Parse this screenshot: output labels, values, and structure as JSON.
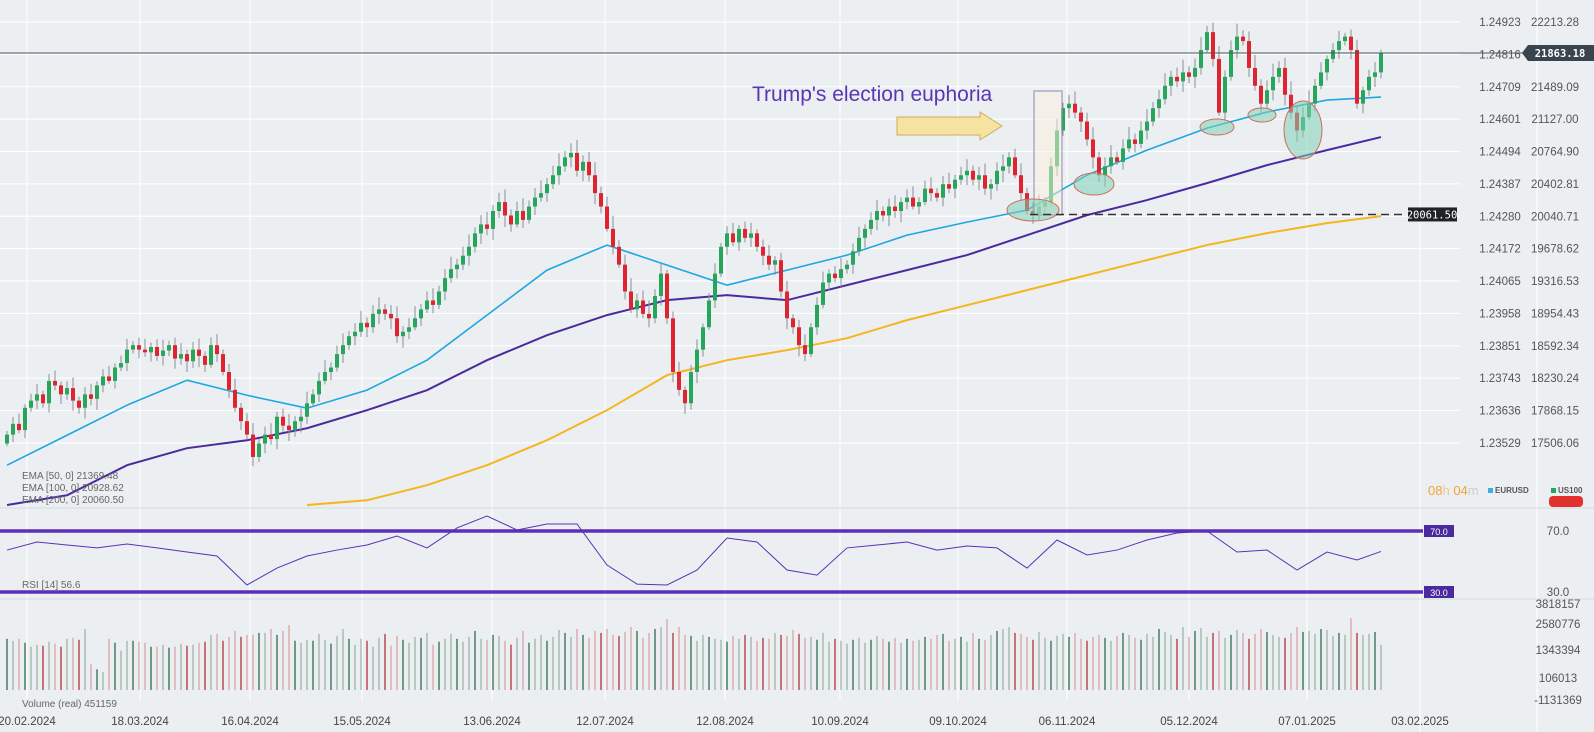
{
  "chart_data": {
    "type": "candlestick",
    "symbol_primary": "US100",
    "symbol_secondary": "EURUSD",
    "annotation_text": "Trump's election euphoria",
    "current_price_label": "21863.18",
    "support_level_label": "20061.50",
    "support_level": 20061.5,
    "countdown": {
      "hours": "08",
      "h": "h",
      "minutes": "04",
      "m": "m"
    },
    "price_axis_right": [
      "22213.28",
      "21863.18",
      "21489.09",
      "21127.00",
      "20764.90",
      "20402.81",
      "20040.71",
      "19678.62",
      "19316.53",
      "18954.43",
      "18592.34",
      "18230.24",
      "17868.15",
      "17506.06"
    ],
    "price_axis_eurusd": [
      "1.24923",
      "1.24816",
      "1.24709",
      "1.24601",
      "1.24494",
      "1.24387",
      "1.24280",
      "1.24172",
      "1.24065",
      "1.23958",
      "1.23851",
      "1.23743",
      "1.23636",
      "1.23529"
    ],
    "ylim": [
      17506.06,
      22213.28
    ],
    "x_tick_labels": [
      "20.02.2024",
      "18.03.2024",
      "16.04.2024",
      "15.05.2024",
      "13.06.2024",
      "12.07.2024",
      "12.08.2024",
      "10.09.2024",
      "09.10.2024",
      "06.11.2024",
      "05.12.2024",
      "07.01.2025",
      "03.02.2025"
    ],
    "closes": [
      17600,
      17720,
      17650,
      17900,
      17980,
      18050,
      17950,
      18200,
      18150,
      18050,
      18120,
      17980,
      17900,
      18050,
      18000,
      18150,
      18250,
      18200,
      18350,
      18400,
      18550,
      18600,
      18550,
      18520,
      18580,
      18480,
      18540,
      18600,
      18450,
      18500,
      18420,
      18550,
      18480,
      18380,
      18600,
      18500,
      18300,
      18100,
      17900,
      17750,
      17600,
      17350,
      17500,
      17600,
      17550,
      17800,
      17700,
      17650,
      17750,
      17800,
      17950,
      18050,
      18200,
      18300,
      18350,
      18500,
      18600,
      18700,
      18750,
      18850,
      18800,
      18950,
      19000,
      18950,
      18900,
      18700,
      18750,
      18800,
      18900,
      19000,
      19100,
      19050,
      19200,
      19350,
      19450,
      19500,
      19600,
      19700,
      19850,
      19950,
      19900,
      20100,
      20200,
      20050,
      19950,
      20100,
      20000,
      20150,
      20250,
      20300,
      20400,
      20500,
      20600,
      20700,
      20750,
      20550,
      20650,
      20500,
      20300,
      20150,
      19900,
      19700,
      19500,
      19200,
      19000,
      19100,
      18950,
      18900,
      19150,
      19400,
      18900,
      18300,
      18100,
      17950,
      18300,
      18550,
      18800,
      19100,
      19400,
      19700,
      19850,
      19750,
      19900,
      19800,
      19850,
      19700,
      19600,
      19500,
      19550,
      19200,
      18900,
      18800,
      18600,
      18500,
      18800,
      19050,
      19300,
      19400,
      19350,
      19450,
      19500,
      19650,
      19800,
      19900,
      20000,
      20100,
      20050,
      20150,
      20100,
      20200,
      20250,
      20150,
      20200,
      20350,
      20300,
      20250,
      20400,
      20350,
      20450,
      20500,
      20550,
      20450,
      20500,
      20350,
      20400,
      20550,
      20600,
      20700,
      20500,
      20300,
      20100,
      20050,
      20150,
      20200,
      20600,
      21000,
      21250,
      21300,
      21200,
      21100,
      20900,
      20700,
      20500,
      20600,
      20700,
      20650,
      20800,
      20900,
      20850,
      21000,
      21100,
      21250,
      21350,
      21500,
      21600,
      21550,
      21650,
      21600,
      21700,
      21900,
      22100,
      21800,
      21200,
      21600,
      21900,
      22050,
      22000,
      21700,
      21500,
      21300,
      21450,
      21600,
      21700,
      21400,
      21200,
      21000,
      21150,
      21300,
      21500,
      21650,
      21800,
      21900,
      22000,
      22050,
      21900,
      21300,
      21450,
      21600,
      21650,
      21863
    ],
    "ema": [
      {
        "name": "EMA [50, 0]",
        "value": "21369.48",
        "color": "#1ea7e1",
        "sample_every": 10,
        "values": [
          17258,
          17593,
          17929,
          18208,
          18040,
          17895,
          18097,
          18432,
          18936,
          19439,
          19719,
          19495,
          19271,
          19439,
          19607,
          19830,
          19976,
          20110,
          20502,
          20781,
          21027,
          21206,
          21340,
          21374
        ]
      },
      {
        "name": "EMA [100, 0]",
        "value": "20928.62",
        "color": "#4b2a9e",
        "sample_every": 10,
        "values": [
          16642,
          16922,
          17258,
          17448,
          17537,
          17671,
          17873,
          18097,
          18432,
          18712,
          18936,
          19103,
          19159,
          19103,
          19271,
          19439,
          19607,
          19830,
          20054,
          20222,
          20412,
          20613,
          20781,
          20927
        ]
      },
      {
        "name": "EMA [200, 0]",
        "value": "20060.50",
        "color": "#f5b51e",
        "sample_every": 10,
        "values": [
          null,
          null,
          null,
          null,
          null,
          16698,
          16866,
          17034,
          17258,
          17537,
          17873,
          18264,
          18432,
          18544,
          18678,
          18880,
          19047,
          19215,
          19383,
          19551,
          19719,
          19853,
          19965,
          20043
        ]
      }
    ],
    "rsi": {
      "name": "RSI [14]",
      "value": "56.6",
      "upper": "70.0",
      "lower": "30.0",
      "line_color": "#5b2fb8",
      "sample_every": 5,
      "values": [
        57.5,
        62.8,
        60.8,
        58.9,
        61.5,
        58.9,
        56.2,
        53.6,
        34.6,
        45.7,
        53.6,
        57.5,
        60.8,
        66.7,
        58.9,
        72,
        79.8,
        70.7,
        74.6,
        74.6,
        47.7,
        35.2,
        34.6,
        44.4,
        65.4,
        62.8,
        44.4,
        41.1,
        58.9,
        60.8,
        62.8,
        57.5,
        60.2,
        58.9,
        45.7,
        64.1,
        54.3,
        57.5,
        64.1,
        68.7,
        70,
        56.2,
        57.5,
        44.4,
        56.2,
        51,
        56.6
      ]
    },
    "volume": {
      "name": "Volume  (real)",
      "value": "451159",
      "axis": [
        "3818157",
        "2580776",
        "1343394",
        "106013",
        "-1131369"
      ],
      "values": [
        2100,
        2000,
        2100,
        1900,
        1700,
        1800,
        1750,
        1950,
        1850,
        1700,
        2100,
        2150,
        2050,
        2600,
        800,
        550,
        400,
        2100,
        1900,
        1500,
        2000,
        2000,
        1950,
        1900,
        1700,
        1700,
        1800,
        1650,
        1700,
        1850,
        1750,
        1800,
        1900,
        1950,
        2300,
        2350,
        2000,
        2200,
        2500,
        2200,
        2300,
        2300,
        2400,
        2400,
        2600,
        2300,
        2500,
        2800,
        2000,
        1900,
        2050,
        2000,
        2350,
        2050,
        1850,
        2250,
        2600,
        2100,
        1800,
        2100,
        2000,
        1700,
        2150,
        2350,
        1750,
        2250,
        2050,
        1900,
        2200,
        2150,
        2400,
        1800,
        1950,
        2100,
        2350,
        2100,
        1950,
        2200,
        2500,
        2100,
        2050,
        2300,
        2250,
        2000,
        1800,
        2150,
        2500,
        1900,
        2100,
        2300,
        2000,
        2200,
        2550,
        2400,
        2200,
        2600,
        2300,
        2150,
        2500,
        2400,
        2600,
        2300,
        2250,
        2450,
        2700,
        2500,
        2150,
        2400,
        2600,
        2700,
        3100,
        2400,
        2700,
        2300,
        2250,
        2000,
        2300,
        2200,
        2100,
        2050,
        1950,
        2250,
        2100,
        2300,
        2200,
        2000,
        2150,
        2100,
        2400,
        2300,
        2250,
        2550,
        2350,
        2150,
        2200,
        2050,
        2400,
        1950,
        2100,
        2000,
        1850,
        2050,
        2150,
        1900,
        2050,
        2250,
        2100,
        1950,
        2150,
        1900,
        2100,
        2000,
        2050,
        2200,
        2100,
        2300,
        2350,
        2000,
        2100,
        2200,
        1950,
        2400,
        2100,
        2050,
        2300,
        2500,
        2600,
        2700,
        2400,
        2350,
        2200,
        2050,
        2450,
        2150,
        2000,
        2250,
        2350,
        2200,
        2400,
        2100,
        2000,
        2200,
        2300,
        2150,
        2000,
        2250,
        2400,
        2300,
        2150,
        2050,
        2350,
        2200,
        2600,
        2450,
        2300,
        2100,
        2700,
        2200,
        2500,
        2650,
        2200,
        2400,
        2500,
        2150,
        2300,
        2550,
        2400,
        2100,
        2350,
        2600,
        2450,
        2300,
        2200,
        2150,
        2400,
        2700,
        2450,
        2500,
        2350,
        2600,
        2550,
        2250,
        2400,
        2300,
        3150,
        2400,
        2300,
        2350,
        2450,
        1800
      ]
    },
    "colors": {
      "up": "#26a65b",
      "down": "#e0242f",
      "background": "#eceff2",
      "annotation": "#5b35b5",
      "arrow": "#f7e3a1",
      "highlight": "#7fd0b4"
    }
  }
}
